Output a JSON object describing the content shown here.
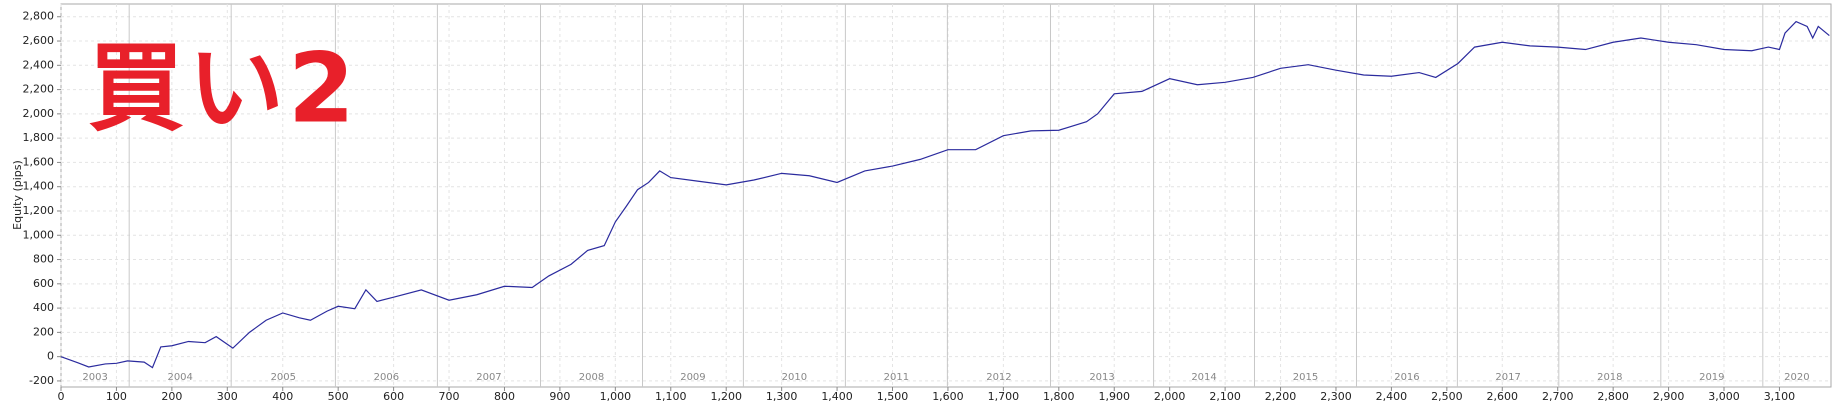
{
  "chart_data": {
    "type": "line",
    "overlay_label": "買い2",
    "ylabel": "Equity (pips)",
    "xlim": [
      0,
      3193
    ],
    "ylim": [
      -250,
      2905
    ],
    "grid": true,
    "xticks": [
      0,
      100,
      200,
      300,
      400,
      500,
      600,
      700,
      800,
      900,
      {
        "value": 1000,
        "label": "1,000"
      },
      {
        "value": 1100,
        "label": "1,100"
      },
      {
        "value": 1200,
        "label": "1,200"
      },
      {
        "value": 1300,
        "label": "1,300"
      },
      {
        "value": 1400,
        "label": "1,400"
      },
      {
        "value": 1500,
        "label": "1,500"
      },
      {
        "value": 1600,
        "label": "1,600"
      },
      {
        "value": 1700,
        "label": "1,700"
      },
      {
        "value": 1800,
        "label": "1,800"
      },
      {
        "value": 1900,
        "label": "1,900"
      },
      {
        "value": 2000,
        "label": "2,000"
      },
      {
        "value": 2100,
        "label": "2,100"
      },
      {
        "value": 2200,
        "label": "2,200"
      },
      {
        "value": 2300,
        "label": "2,300"
      },
      {
        "value": 2400,
        "label": "2,400"
      },
      {
        "value": 2500,
        "label": "2,500"
      },
      {
        "value": 2600,
        "label": "2,600"
      },
      {
        "value": 2700,
        "label": "2,700"
      },
      {
        "value": 2800,
        "label": "2,800"
      },
      {
        "value": 2900,
        "label": "2,900"
      },
      {
        "value": 3000,
        "label": "3,000"
      },
      {
        "value": 3100,
        "label": "3,100"
      }
    ],
    "yticks": [
      -200,
      0,
      200,
      400,
      600,
      800,
      {
        "value": 1000,
        "label": "1,000"
      },
      {
        "value": 1200,
        "label": "1,200"
      },
      {
        "value": 1400,
        "label": "1,400"
      },
      {
        "value": 1600,
        "label": "1,600"
      },
      {
        "value": 1800,
        "label": "1,800"
      },
      {
        "value": 2000,
        "label": "2,000"
      },
      {
        "value": 2200,
        "label": "2,200"
      },
      {
        "value": 2400,
        "label": "2,400"
      },
      {
        "value": 2600,
        "label": "2,600"
      },
      {
        "value": 2800,
        "label": "2,800"
      }
    ],
    "years": [
      "2003",
      "2004",
      "2005",
      "2006",
      "2007",
      "2008",
      "2009",
      "2010",
      "2011",
      "2012",
      "2013",
      "2014",
      "2015",
      "2016",
      "2017",
      "2018",
      "2019",
      "2020"
    ],
    "year_boundaries": [
      123,
      307,
      495,
      679,
      865,
      1049,
      1231,
      1415,
      1599,
      1785,
      1971,
      2153,
      2337,
      2519,
      2702,
      2886,
      3070
    ],
    "series": [
      {
        "name": "Equity",
        "color": "#2b2b9e",
        "x": [
          0,
          30,
          50,
          80,
          100,
          120,
          150,
          165,
          180,
          200,
          230,
          260,
          280,
          310,
          340,
          370,
          400,
          430,
          450,
          480,
          500,
          530,
          550,
          570,
          600,
          650,
          700,
          750,
          800,
          850,
          880,
          920,
          950,
          980,
          1000,
          1020,
          1040,
          1060,
          1080,
          1100,
          1150,
          1200,
          1250,
          1300,
          1350,
          1400,
          1450,
          1500,
          1550,
          1600,
          1650,
          1700,
          1750,
          1800,
          1850,
          1870,
          1900,
          1950,
          2000,
          2050,
          2100,
          2150,
          2200,
          2250,
          2300,
          2350,
          2400,
          2450,
          2480,
          2520,
          2550,
          2600,
          2650,
          2700,
          2750,
          2800,
          2850,
          2900,
          2950,
          3000,
          3050,
          3080,
          3100,
          3110,
          3130,
          3150,
          3160,
          3170,
          3190
        ],
        "values": [
          0,
          -50,
          -85,
          -60,
          -55,
          -35,
          -45,
          -90,
          80,
          90,
          125,
          115,
          165,
          70,
          200,
          300,
          360,
          320,
          300,
          375,
          415,
          395,
          550,
          455,
          490,
          550,
          465,
          510,
          580,
          570,
          665,
          760,
          875,
          915,
          1110,
          1240,
          1375,
          1435,
          1530,
          1475,
          1445,
          1415,
          1455,
          1510,
          1490,
          1435,
          1530,
          1570,
          1625,
          1705,
          1705,
          1820,
          1860,
          1865,
          1935,
          2000,
          2165,
          2185,
          2290,
          2240,
          2260,
          2300,
          2375,
          2405,
          2360,
          2320,
          2310,
          2340,
          2300,
          2415,
          2550,
          2590,
          2560,
          2550,
          2530,
          2590,
          2625,
          2590,
          2570,
          2530,
          2520,
          2550,
          2530,
          2665,
          2760,
          2720,
          2625,
          2720,
          2645
        ]
      }
    ]
  }
}
